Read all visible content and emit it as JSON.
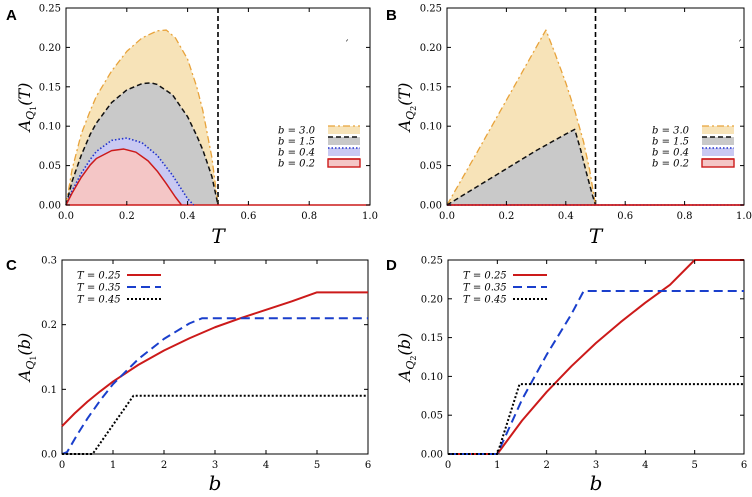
{
  "figure": {
    "panels": [
      {
        "letter": "A",
        "type": "area",
        "ylabel": "A_{Q_1}(T)",
        "ylabel_main": "A",
        "ylabel_sub": "Q",
        "ylabel_subsub": "1",
        "ylabel_arg": "(T)",
        "xlabel": "T",
        "xlim": [
          0,
          1
        ],
        "ylim": [
          0,
          0.25
        ],
        "xticks": [
          "0.0",
          "0.2",
          "0.4",
          "0.6",
          "0.8",
          "1.0"
        ],
        "xtick_values": [
          0,
          0.2,
          0.4,
          0.6,
          0.8,
          1.0
        ],
        "yticks": [
          "0.00",
          "0.05",
          "0.10",
          "0.15",
          "0.20",
          "0.25"
        ],
        "ytick_values": [
          0,
          0.05,
          0.1,
          0.15,
          0.2,
          0.25
        ],
        "vline": 0.5,
        "legend": [
          "b = 3.0",
          "b = 1.5",
          "b = 0.4",
          "b = 0.2"
        ],
        "series": [
          {
            "name": "b = 3.0",
            "color": "#e8a33b",
            "fill": "#f7e3b8",
            "dash": "7,3,2,3",
            "width": 1.3,
            "x": [
              0,
              0.02,
              0.05,
              0.08,
              0.1,
              0.15,
              0.2,
              0.25,
              0.3,
              0.33,
              0.36,
              0.4,
              0.43,
              0.45,
              0.48,
              0.5
            ],
            "y": [
              0,
              0.045,
              0.09,
              0.12,
              0.138,
              0.17,
              0.195,
              0.212,
              0.221,
              0.222,
              0.212,
              0.185,
              0.15,
              0.12,
              0.06,
              0
            ]
          },
          {
            "name": "b = 1.5",
            "color": "#111111",
            "fill": "#c9c9c9",
            "dash": "5,3",
            "width": 1.5,
            "x": [
              0,
              0.02,
              0.05,
              0.08,
              0.1,
              0.15,
              0.2,
              0.25,
              0.28,
              0.3,
              0.35,
              0.4,
              0.43,
              0.45,
              0.48,
              0.5
            ],
            "y": [
              0,
              0.03,
              0.063,
              0.09,
              0.104,
              0.13,
              0.146,
              0.154,
              0.155,
              0.153,
              0.14,
              0.112,
              0.088,
              0.07,
              0.036,
              0
            ]
          },
          {
            "name": "b = 0.4",
            "color": "#2233cc",
            "fill": "#c9c9f2",
            "dash": "1.5,2",
            "width": 1.6,
            "x": [
              0,
              0.02,
              0.05,
              0.08,
              0.1,
              0.15,
              0.2,
              0.25,
              0.3,
              0.35,
              0.38,
              0.4,
              0.42
            ],
            "y": [
              0,
              0.018,
              0.04,
              0.058,
              0.068,
              0.082,
              0.085,
              0.079,
              0.063,
              0.038,
              0.02,
              0.008,
              0
            ]
          },
          {
            "name": "b = 0.2",
            "color": "#cc1a1a",
            "fill": "#f4c6c6",
            "dash": "",
            "width": 1.5,
            "x": [
              0,
              0.02,
              0.05,
              0.08,
              0.1,
              0.15,
              0.19,
              0.23,
              0.27,
              0.3,
              0.33,
              0.36,
              0.38
            ],
            "y": [
              0,
              0.015,
              0.035,
              0.051,
              0.059,
              0.069,
              0.071,
              0.067,
              0.056,
              0.043,
              0.027,
              0.01,
              0
            ]
          }
        ]
      },
      {
        "letter": "B",
        "type": "area",
        "ylabel": "A_{Q_2}(T)",
        "ylabel_main": "A",
        "ylabel_sub": "Q",
        "ylabel_subsub": "2",
        "ylabel_arg": "(T)",
        "xlabel": "T",
        "xlim": [
          0,
          1
        ],
        "ylim": [
          0,
          0.25
        ],
        "xticks": [
          "0.0",
          "0.2",
          "0.4",
          "0.6",
          "0.8",
          "1.0"
        ],
        "xtick_values": [
          0,
          0.2,
          0.4,
          0.6,
          0.8,
          1.0
        ],
        "yticks": [
          "0.00",
          "0.05",
          "0.10",
          "0.15",
          "0.20",
          "0.25"
        ],
        "ytick_values": [
          0,
          0.05,
          0.1,
          0.15,
          0.2,
          0.25
        ],
        "vline": 0.5,
        "legend": [
          "b = 3.0",
          "b = 1.5",
          "b = 0.4",
          "b = 0.2"
        ],
        "series": [
          {
            "name": "b = 3.0",
            "color": "#e8a33b",
            "fill": "#f7e3b8",
            "dash": "7,3,2,3",
            "width": 1.3,
            "x": [
              0,
              0.1,
              0.2,
              0.3,
              0.333,
              0.36,
              0.4,
              0.43,
              0.46,
              0.48,
              0.5
            ],
            "y": [
              0,
              0.066,
              0.133,
              0.2,
              0.222,
              0.196,
              0.155,
              0.12,
              0.08,
              0.045,
              0
            ]
          },
          {
            "name": "b = 1.5",
            "color": "#111111",
            "fill": "#c9c9c9",
            "dash": "5,3",
            "width": 1.5,
            "x": [
              0,
              0.1,
              0.2,
              0.3,
              0.4,
              0.43,
              0.45,
              0.47,
              0.49,
              0.5
            ],
            "y": [
              0,
              0.023,
              0.046,
              0.069,
              0.09,
              0.096,
              0.07,
              0.04,
              0.012,
              0
            ]
          },
          {
            "name": "b = 0.4",
            "color": "#2233cc",
            "fill": "#c9c9f2",
            "dash": "1.5,2",
            "width": 1.6,
            "x": [
              0,
              1
            ],
            "y": [
              0,
              0
            ]
          },
          {
            "name": "b = 0.2",
            "color": "#cc1a1a",
            "fill": "#f4c6c6",
            "dash": "",
            "width": 1.5,
            "x": [
              0,
              1
            ],
            "y": [
              0,
              0
            ]
          }
        ]
      },
      {
        "letter": "C",
        "type": "line",
        "ylabel": "A_{Q_1}(b)",
        "ylabel_main": "A",
        "ylabel_sub": "Q",
        "ylabel_subsub": "1",
        "ylabel_arg": "(b)",
        "xlabel": "b",
        "xlim": [
          0,
          6
        ],
        "ylim": [
          0,
          0.3
        ],
        "xticks": [
          "0",
          "1",
          "2",
          "3",
          "4",
          "5",
          "6"
        ],
        "xtick_values": [
          0,
          1,
          2,
          3,
          4,
          5,
          6
        ],
        "yticks": [
          "0.0",
          "0.1",
          "0.2",
          "0.3"
        ],
        "ytick_values": [
          0,
          0.1,
          0.2,
          0.3
        ],
        "legend": [
          "T = 0.25",
          "T = 0.35",
          "T = 0.45"
        ],
        "series": [
          {
            "name": "T = 0.25",
            "color": "#cc1a1a",
            "dash": "",
            "width": 2,
            "x": [
              0,
              0.25,
              0.5,
              0.75,
              1,
              1.5,
              2,
              2.5,
              3,
              3.5,
              4,
              4.5,
              5,
              6
            ],
            "y": [
              0.043,
              0.063,
              0.081,
              0.097,
              0.112,
              0.138,
              0.16,
              0.179,
              0.196,
              0.21,
              0.223,
              0.236,
              0.25,
              0.25
            ]
          },
          {
            "name": "T = 0.35",
            "color": "#1a3fcc",
            "dash": "9,5",
            "width": 2,
            "x": [
              0,
              0.1,
              0.3,
              0.5,
              0.75,
              1,
              1.5,
              2,
              2.5,
              2.75,
              6
            ],
            "y": [
              0,
              0.003,
              0.03,
              0.055,
              0.083,
              0.108,
              0.147,
              0.178,
              0.202,
              0.21,
              0.21
            ]
          },
          {
            "name": "T = 0.45",
            "color": "#000000",
            "dash": "2,2",
            "width": 2,
            "x": [
              0,
              0.6,
              1,
              1.4,
              6
            ],
            "y": [
              0,
              0,
              0.045,
              0.09,
              0.09
            ]
          }
        ]
      },
      {
        "letter": "D",
        "type": "line",
        "ylabel": "A_{Q_2}(b)",
        "ylabel_main": "A",
        "ylabel_sub": "Q",
        "ylabel_subsub": "2",
        "ylabel_arg": "(b)",
        "xlabel": "b",
        "xlim": [
          0,
          6
        ],
        "ylim": [
          0,
          0.25
        ],
        "xticks": [
          "0",
          "1",
          "2",
          "3",
          "4",
          "5",
          "6"
        ],
        "xtick_values": [
          0,
          1,
          2,
          3,
          4,
          5,
          6
        ],
        "yticks": [
          "0.00",
          "0.05",
          "0.10",
          "0.15",
          "0.20",
          "0.25"
        ],
        "ytick_values": [
          0,
          0.05,
          0.1,
          0.15,
          0.2,
          0.25
        ],
        "legend": [
          "T = 0.25",
          "T = 0.35",
          "T = 0.45"
        ],
        "series": [
          {
            "name": "T = 0.25",
            "color": "#cc1a1a",
            "dash": "",
            "width": 2,
            "x": [
              0,
              1,
              1.5,
              2,
              2.5,
              3,
              3.5,
              4,
              4.5,
              5,
              6
            ],
            "y": [
              0,
              0,
              0.043,
              0.08,
              0.113,
              0.143,
              0.17,
              0.195,
              0.218,
              0.25,
              0.25
            ]
          },
          {
            "name": "T = 0.35",
            "color": "#1a3fcc",
            "dash": "9,5",
            "width": 2,
            "x": [
              0,
              1,
              1.5,
              2,
              2.5,
              2.75,
              6
            ],
            "y": [
              0,
              0,
              0.07,
              0.128,
              0.18,
              0.21,
              0.21
            ]
          },
          {
            "name": "T = 0.45",
            "color": "#000000",
            "dash": "2,2",
            "width": 2,
            "x": [
              0,
              1,
              1.25,
              1.45,
              6
            ],
            "y": [
              0,
              0,
              0.05,
              0.09,
              0.09
            ]
          }
        ]
      }
    ],
    "marks": [
      "ˊ",
      "ˊ"
    ]
  },
  "chart_data": [
    {
      "type": "area",
      "title": "A",
      "xlabel": "T",
      "ylabel": "A_{Q_1}(T)",
      "xlim": [
        0,
        1
      ],
      "ylim": [
        0,
        0.25
      ],
      "legend": [
        "b = 3.0",
        "b = 1.5",
        "b = 0.4",
        "b = 0.2"
      ],
      "vline": 0.5
    },
    {
      "type": "area",
      "title": "B",
      "xlabel": "T",
      "ylabel": "A_{Q_2}(T)",
      "xlim": [
        0,
        1
      ],
      "ylim": [
        0,
        0.25
      ],
      "legend": [
        "b = 3.0",
        "b = 1.5",
        "b = 0.4",
        "b = 0.2"
      ],
      "vline": 0.5
    },
    {
      "type": "line",
      "title": "C",
      "xlabel": "b",
      "ylabel": "A_{Q_1}(b)",
      "xlim": [
        0,
        6
      ],
      "ylim": [
        0,
        0.3
      ],
      "legend": [
        "T = 0.25",
        "T = 0.35",
        "T = 0.45"
      ]
    },
    {
      "type": "line",
      "title": "D",
      "xlabel": "b",
      "ylabel": "A_{Q_2}(b)",
      "xlim": [
        0,
        6
      ],
      "ylim": [
        0,
        0.25
      ],
      "legend": [
        "T = 0.25",
        "T = 0.35",
        "T = 0.45"
      ]
    }
  ]
}
